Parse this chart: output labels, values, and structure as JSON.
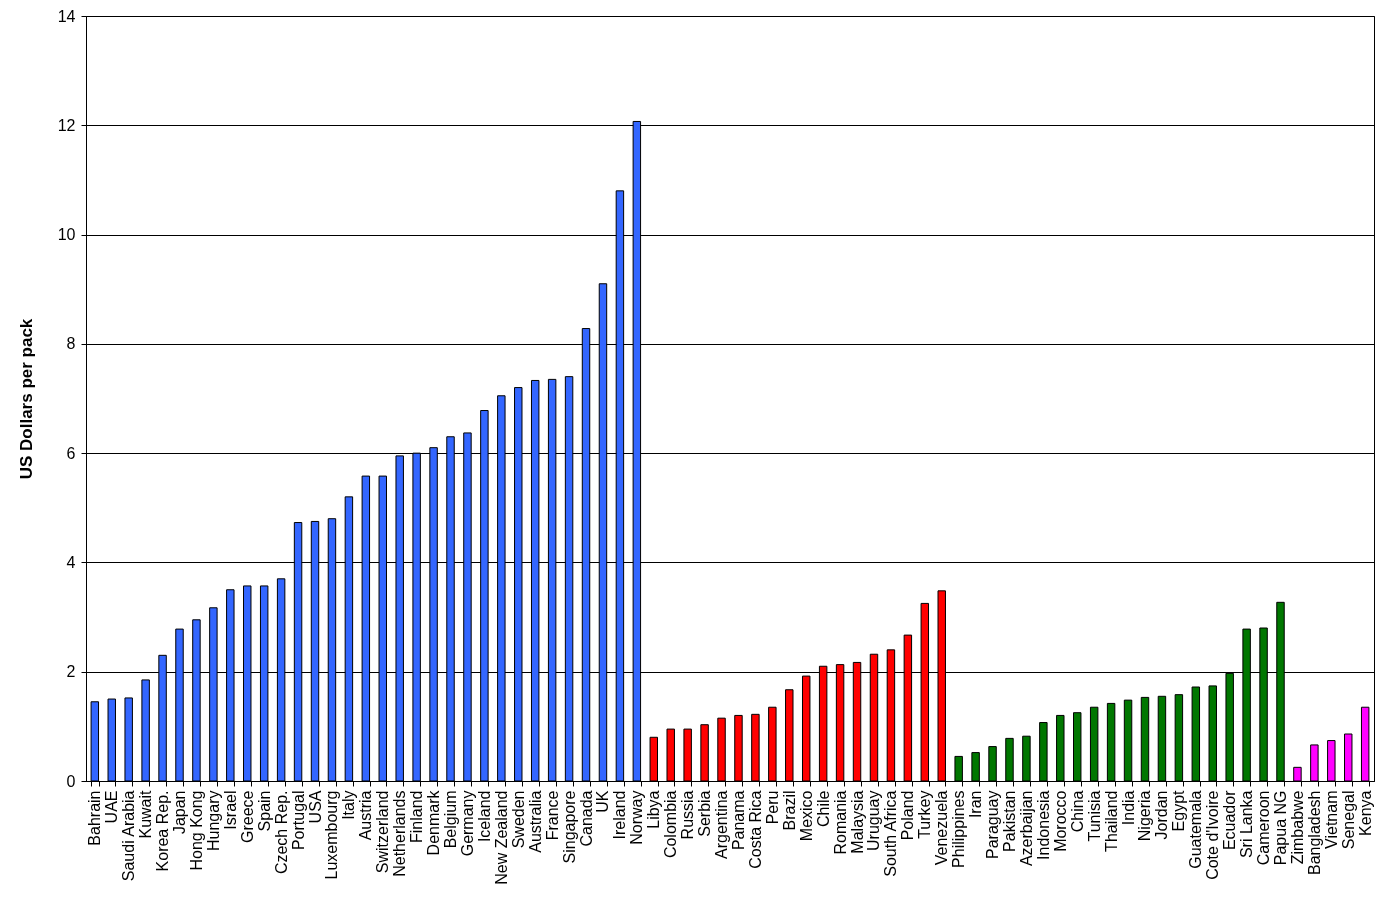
{
  "chart_data": {
    "type": "bar",
    "ylabel": "US Dollars per pack",
    "categories": [
      "Bahrain",
      "UAE",
      "Saudi Arabia",
      "Kuwait",
      "Korea Rep.",
      "Japan",
      "Hong Kong",
      "Hungary",
      "Israel",
      "Greece",
      "Spain",
      "Czech Rep.",
      "Portugal",
      "USA",
      "Luxembourg",
      "Italy",
      "Austria",
      "Switzerland",
      "Netherlands",
      "Finland",
      "Denmark",
      "Belgium",
      "Germany",
      "Iceland",
      "New Zealand",
      "Sweden",
      "Australia",
      "France",
      "Singapore",
      "Canada",
      "UK",
      "Ireland",
      "Norway",
      "Libya",
      "Colombia",
      "Russia",
      "Serbia",
      "Argentina",
      "Panama",
      "Costa Rica",
      "Peru",
      "Brazil",
      "Mexico",
      "Chile",
      "Romania",
      "Malaysia",
      "Uruguay",
      "South Africa",
      "Poland",
      "Turkey",
      "Venezuela",
      "Philippines",
      "Iran",
      "Paraguay",
      "Pakistan",
      "Azerbaijan",
      "Indonesia",
      "Morocco",
      "China",
      "Tunisia",
      "Thailand",
      "India",
      "Nigeria",
      "Jordan",
      "Egypt",
      "Guatemala",
      "Cote d'Ivoire",
      "Ecuador",
      "Sri Lanka",
      "Cameroon",
      "Papua NG",
      "Zimbabwe",
      "Bangladesh",
      "Vietnam",
      "Senegal",
      "Kenya"
    ],
    "values": [
      1.45,
      1.5,
      1.52,
      1.85,
      2.3,
      2.78,
      2.95,
      3.17,
      3.5,
      3.57,
      3.57,
      3.7,
      4.73,
      4.75,
      4.8,
      5.2,
      5.58,
      5.58,
      5.95,
      6.0,
      6.1,
      6.3,
      6.37,
      6.78,
      7.05,
      7.2,
      7.33,
      7.35,
      7.4,
      8.28,
      9.1,
      10.8,
      12.07,
      0.8,
      0.95,
      0.95,
      1.03,
      1.15,
      1.2,
      1.22,
      1.35,
      1.67,
      1.92,
      2.1,
      2.13,
      2.17,
      2.32,
      2.4,
      2.67,
      3.25,
      3.48,
      0.45,
      0.52,
      0.63,
      0.78,
      0.82,
      1.07,
      1.2,
      1.25,
      1.35,
      1.42,
      1.48,
      1.53,
      1.55,
      1.58,
      1.72,
      1.74,
      1.97,
      2.78,
      2.8,
      3.27,
      0.25,
      0.66,
      0.74,
      0.86,
      1.35
    ],
    "colors": [
      "#3366ff",
      "#3366ff",
      "#3366ff",
      "#3366ff",
      "#3366ff",
      "#3366ff",
      "#3366ff",
      "#3366ff",
      "#3366ff",
      "#3366ff",
      "#3366ff",
      "#3366ff",
      "#3366ff",
      "#3366ff",
      "#3366ff",
      "#3366ff",
      "#3366ff",
      "#3366ff",
      "#3366ff",
      "#3366ff",
      "#3366ff",
      "#3366ff",
      "#3366ff",
      "#3366ff",
      "#3366ff",
      "#3366ff",
      "#3366ff",
      "#3366ff",
      "#3366ff",
      "#3366ff",
      "#3366ff",
      "#3366ff",
      "#3366ff",
      "#ff0000",
      "#ff0000",
      "#ff0000",
      "#ff0000",
      "#ff0000",
      "#ff0000",
      "#ff0000",
      "#ff0000",
      "#ff0000",
      "#ff0000",
      "#ff0000",
      "#ff0000",
      "#ff0000",
      "#ff0000",
      "#ff0000",
      "#ff0000",
      "#ff0000",
      "#ff0000",
      "#007700",
      "#007700",
      "#007700",
      "#007700",
      "#007700",
      "#007700",
      "#007700",
      "#007700",
      "#007700",
      "#007700",
      "#007700",
      "#007700",
      "#007700",
      "#007700",
      "#007700",
      "#007700",
      "#007700",
      "#007700",
      "#007700",
      "#007700",
      "#ff00ff",
      "#ff00ff",
      "#ff00ff",
      "#ff00ff",
      "#ff00ff"
    ],
    "ylim": [
      0,
      14
    ],
    "yticks": [
      0,
      2,
      4,
      6,
      8,
      10,
      12,
      14
    ],
    "grid": "y"
  }
}
